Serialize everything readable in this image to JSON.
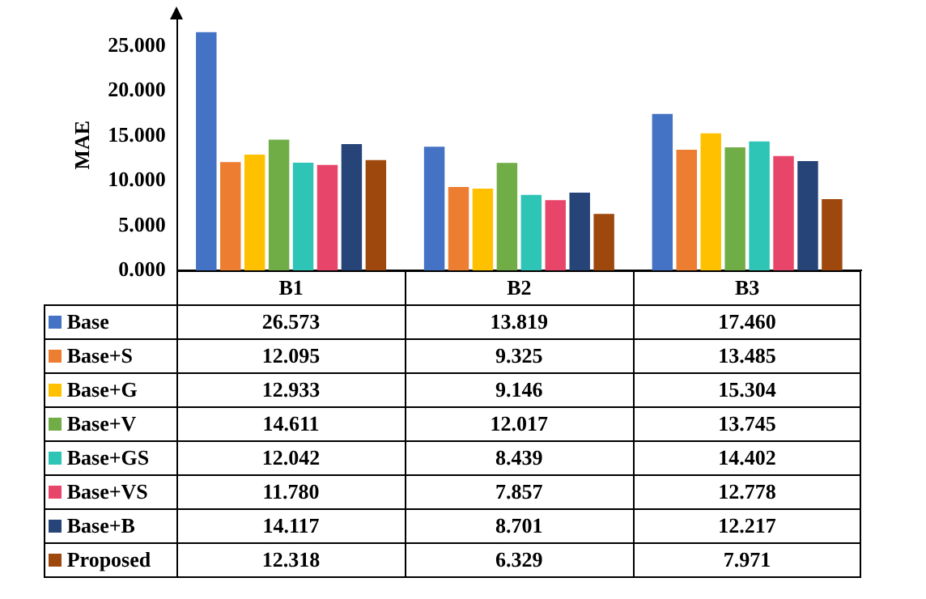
{
  "chart_data": {
    "type": "bar",
    "ylabel": "MAE",
    "categories": [
      "B1",
      "B2",
      "B3"
    ],
    "series": [
      {
        "name": "Base",
        "color": "#4472c4",
        "values": [
          26.573,
          13.819,
          17.46
        ],
        "value_labels": [
          "26.573",
          "13.819",
          "17.460"
        ]
      },
      {
        "name": "Base+S",
        "color": "#ed7d31",
        "values": [
          12.095,
          9.325,
          13.485
        ],
        "value_labels": [
          "12.095",
          "9.325",
          "13.485"
        ]
      },
      {
        "name": "Base+G",
        "color": "#ffc000",
        "values": [
          12.933,
          9.146,
          15.304
        ],
        "value_labels": [
          "12.933",
          "9.146",
          "15.304"
        ]
      },
      {
        "name": "Base+V",
        "color": "#70ad47",
        "values": [
          14.611,
          12.017,
          13.745
        ],
        "value_labels": [
          "14.611",
          "12.017",
          "13.745"
        ]
      },
      {
        "name": "Base+GS",
        "color": "#2ec4b6",
        "values": [
          12.042,
          8.439,
          14.402
        ],
        "value_labels": [
          "12.042",
          "8.439",
          "14.402"
        ]
      },
      {
        "name": "Base+VS",
        "color": "#e8456b",
        "values": [
          11.78,
          7.857,
          12.778
        ],
        "value_labels": [
          "11.780",
          "7.857",
          "12.778"
        ]
      },
      {
        "name": "Base+B",
        "color": "#264478",
        "values": [
          14.117,
          8.701,
          12.217
        ],
        "value_labels": [
          "14.117",
          "8.701",
          "12.217"
        ]
      },
      {
        "name": "Proposed",
        "color": "#9e480e",
        "values": [
          12.318,
          6.329,
          7.971
        ],
        "value_labels": [
          "12.318",
          "6.329",
          "7.971"
        ]
      }
    ],
    "ylim": [
      0,
      28
    ],
    "yticks": [
      {
        "value": 0,
        "label": "0.000"
      },
      {
        "value": 5,
        "label": "5.000"
      },
      {
        "value": 10,
        "label": "10.000"
      },
      {
        "value": 15,
        "label": "15.000"
      },
      {
        "value": 20,
        "label": "20.000"
      },
      {
        "value": 25,
        "label": "25.000"
      }
    ],
    "grid": false,
    "legend": "bottom"
  }
}
